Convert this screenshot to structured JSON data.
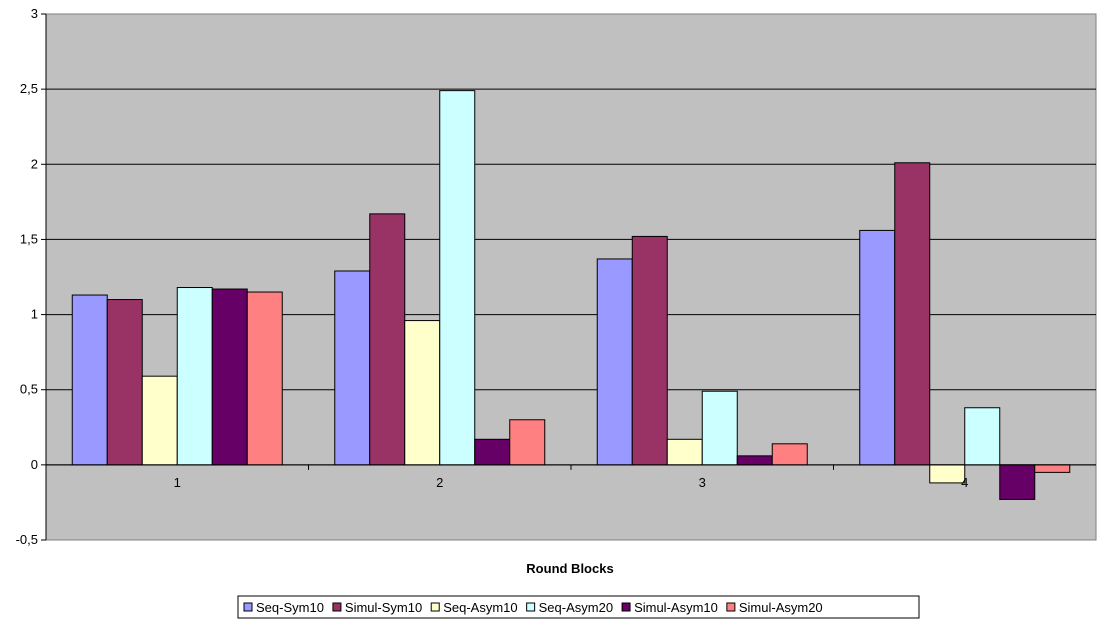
{
  "chart_data": {
    "type": "bar",
    "title": "",
    "xlabel": "Round Blocks",
    "ylabel": "",
    "categories": [
      "1",
      "2",
      "3",
      "4"
    ],
    "y_ticks": [
      "-0,5",
      "0",
      "0,5",
      "1",
      "1,5",
      "2",
      "2,5",
      "3"
    ],
    "ylim": [
      -0.5,
      3
    ],
    "grid": true,
    "legend": "bottom",
    "plot_background": "#c0c0c0",
    "series": [
      {
        "name": "Seq-Sym10",
        "color": "#9999ff",
        "values": [
          1.13,
          1.29,
          1.37,
          1.56
        ]
      },
      {
        "name": "Simul-Sym10",
        "color": "#993366",
        "values": [
          1.1,
          1.67,
          1.52,
          2.01
        ]
      },
      {
        "name": "Seq-Asym10",
        "color": "#ffffcc",
        "values": [
          0.59,
          0.96,
          0.17,
          -0.12
        ]
      },
      {
        "name": "Seq-Asym20",
        "color": "#ccffff",
        "values": [
          1.18,
          2.49,
          0.49,
          0.38
        ]
      },
      {
        "name": "Simul-Asym10",
        "color": "#660066",
        "values": [
          1.17,
          0.17,
          0.06,
          -0.23
        ]
      },
      {
        "name": "Simul-Asym20",
        "color": "#ff8080",
        "values": [
          1.15,
          0.3,
          0.14,
          -0.05
        ]
      }
    ]
  }
}
